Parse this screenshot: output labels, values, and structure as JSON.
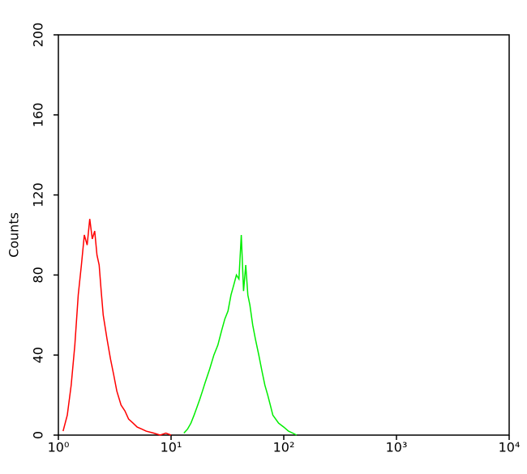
{
  "chart_data": {
    "type": "line",
    "y_label": "Counts",
    "xscale": "log",
    "xlim": [
      1,
      10000
    ],
    "ylim": [
      0,
      200
    ],
    "xticks": [
      {
        "value": 1,
        "label": "10⁰"
      },
      {
        "value": 10,
        "label": "10¹"
      },
      {
        "value": 100,
        "label": "10²"
      },
      {
        "value": 1000,
        "label": "10³"
      },
      {
        "value": 10000,
        "label": "10⁴"
      }
    ],
    "yticks": [
      0,
      40,
      80,
      120,
      160,
      200
    ],
    "series": [
      {
        "color": "#ff0000",
        "x": [
          1.1,
          1.2,
          1.3,
          1.4,
          1.5,
          1.6,
          1.7,
          1.8,
          1.9,
          2.0,
          2.1,
          2.2,
          2.3,
          2.4,
          2.5,
          2.7,
          2.9,
          3.1,
          3.3,
          3.6,
          3.9,
          4.2,
          4.6,
          5,
          5.5,
          6,
          7,
          8,
          9,
          10
        ],
        "values": [
          2,
          10,
          25,
          45,
          70,
          85,
          100,
          95,
          108,
          98,
          102,
          90,
          85,
          72,
          60,
          48,
          38,
          30,
          22,
          15,
          12,
          8,
          6,
          4,
          3,
          2,
          1,
          0,
          1,
          0
        ]
      },
      {
        "color": "#00ee00",
        "x": [
          13,
          14,
          15,
          16,
          17,
          18,
          19,
          20,
          22,
          24,
          26,
          28,
          30,
          32,
          34,
          36,
          38,
          40,
          42,
          44,
          46,
          48,
          50,
          53,
          56,
          60,
          64,
          68,
          72,
          76,
          80,
          90,
          100,
          110,
          120,
          130
        ],
        "values": [
          1,
          3,
          6,
          10,
          14,
          18,
          22,
          26,
          33,
          40,
          45,
          52,
          58,
          62,
          70,
          75,
          80,
          78,
          100,
          72,
          85,
          70,
          65,
          55,
          48,
          40,
          32,
          25,
          20,
          15,
          10,
          6,
          4,
          2,
          1,
          0
        ]
      }
    ]
  }
}
